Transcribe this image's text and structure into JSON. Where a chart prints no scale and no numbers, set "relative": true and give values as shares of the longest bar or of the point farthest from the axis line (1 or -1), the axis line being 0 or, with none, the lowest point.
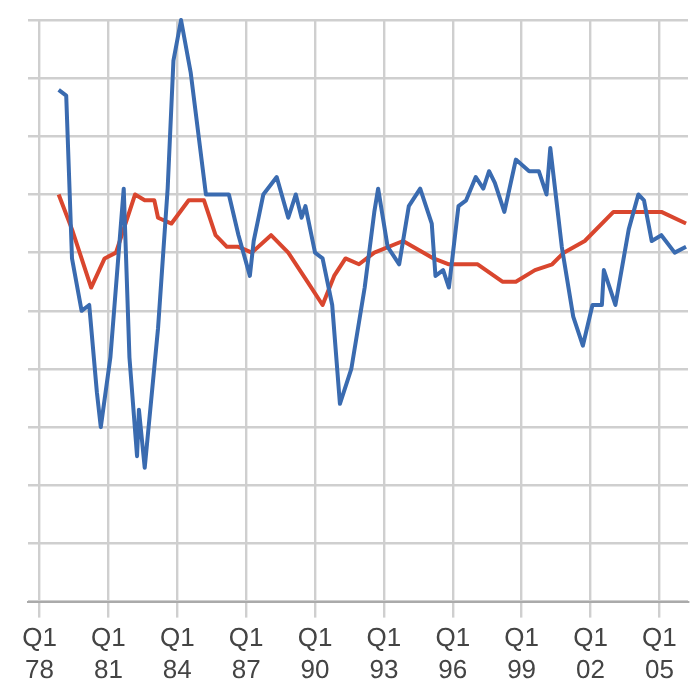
{
  "chart_data": {
    "type": "line",
    "relative": true,
    "grid": true,
    "marker": "none",
    "line_style": "solid",
    "legend": false,
    "xlim": [
      "1977-07",
      "2006-04"
    ],
    "xticks": [
      {
        "value": "1978-01",
        "label": "Q1 78"
      },
      {
        "value": "1981-01",
        "label": "Q1 81"
      },
      {
        "value": "1984-01",
        "label": "Q1 84"
      },
      {
        "value": "1987-01",
        "label": "Q1 87"
      },
      {
        "value": "1990-01",
        "label": "Q1 90"
      },
      {
        "value": "1993-01",
        "label": "Q1 93"
      },
      {
        "value": "1996-01",
        "label": "Q1 96"
      },
      {
        "value": "1999-01",
        "label": "Q1 99"
      },
      {
        "value": "2002-01",
        "label": "Q1 02"
      },
      {
        "value": "2005-01",
        "label": "Q1 05"
      }
    ],
    "series": [
      {
        "color": "#3a6bb0",
        "x": [
          "1978-11",
          "1979-03",
          "1979-06",
          "1979-11",
          "1980-03",
          "1980-07",
          "1980-09",
          "1981-02",
          "1981-09",
          "1981-12",
          "1982-04",
          "1982-05",
          "1982-08",
          "1983-03",
          "1983-08",
          "1983-11",
          "1984-03",
          "1984-08",
          "1985-04",
          "1985-08",
          "1986-04",
          "1986-09",
          "1987-03",
          "1987-05",
          "1987-10",
          "1988-05",
          "1988-11",
          "1989-03",
          "1989-06",
          "1989-08",
          "1990-01",
          "1990-05",
          "1990-10",
          "1991-02",
          "1991-08",
          "1992-03",
          "1992-08",
          "1992-10",
          "1993-03",
          "1993-09",
          "1994-02",
          "1994-08",
          "1995-02",
          "1995-04",
          "1995-08",
          "1995-11",
          "1996-04",
          "1996-08",
          "1997-01",
          "1997-05",
          "1997-08",
          "1997-11",
          "1998-04",
          "1998-10",
          "1999-05",
          "1999-10",
          "2000-02",
          "2000-04",
          "2000-10",
          "2001-04",
          "2001-09",
          "2002-02",
          "2002-07",
          "2002-08",
          "2003-02",
          "2003-09",
          "2004-02",
          "2004-05",
          "2004-09",
          "2005-02",
          "2005-09",
          "2006-03"
        ],
        "values": [
          0.88,
          0.87,
          0.59,
          0.5,
          0.51,
          0.36,
          0.3,
          0.42,
          0.71,
          0.42,
          0.25,
          0.33,
          0.23,
          0.47,
          0.71,
          0.93,
          1,
          0.91,
          0.7,
          0.7,
          0.7,
          0.63,
          0.56,
          0.62,
          0.7,
          0.73,
          0.66,
          0.7,
          0.66,
          0.68,
          0.6,
          0.59,
          0.51,
          0.34,
          0.4,
          0.54,
          0.67,
          0.71,
          0.61,
          0.58,
          0.68,
          0.71,
          0.65,
          0.56,
          0.57,
          0.54,
          0.68,
          0.69,
          0.73,
          0.71,
          0.74,
          0.72,
          0.67,
          0.76,
          0.74,
          0.74,
          0.7,
          0.78,
          0.61,
          0.49,
          0.44,
          0.51,
          0.51,
          0.57,
          0.51,
          0.64,
          0.7,
          0.69,
          0.62,
          0.63,
          0.6,
          0.61
        ]
      },
      {
        "color": "#d9462e",
        "x": [
          "1978-11",
          "1979-06",
          "1980-04",
          "1980-11",
          "1981-05",
          "1982-03",
          "1982-08",
          "1983-01",
          "1983-03",
          "1983-10",
          "1984-07",
          "1985-03",
          "1985-09",
          "1986-03",
          "1986-09",
          "1987-04",
          "1988-02",
          "1988-11",
          "1989-09",
          "1990-05",
          "1990-11",
          "1991-05",
          "1991-12",
          "1992-08",
          "1993-11",
          "1995-03",
          "1995-11",
          "1997-02",
          "1998-03",
          "1998-10",
          "1999-08",
          "2000-05",
          "2000-11",
          "2001-10",
          "2003-01",
          "2003-09",
          "2005-02",
          "2006-03"
        ],
        "values": [
          0.7,
          0.64,
          0.54,
          0.59,
          0.6,
          0.7,
          0.69,
          0.69,
          0.66,
          0.65,
          0.69,
          0.69,
          0.63,
          0.61,
          0.61,
          0.6,
          0.63,
          0.6,
          0.55,
          0.51,
          0.56,
          0.59,
          0.58,
          0.6,
          0.62,
          0.59,
          0.58,
          0.58,
          0.55,
          0.55,
          0.57,
          0.58,
          0.6,
          0.62,
          0.67,
          0.67,
          0.67,
          0.65
        ]
      }
    ]
  }
}
